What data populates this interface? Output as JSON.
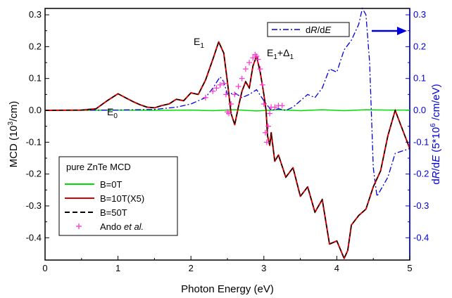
{
  "chart_data": {
    "type": "line",
    "xlabel": "Photon Energy (eV)",
    "ylabel_left": {
      "main": "MCD (10",
      "sup": "3",
      "tail": "/cm)"
    },
    "ylabel_right": {
      "pre": "d",
      "R": "R",
      "mid": "/d",
      "E": "E",
      "rest": " (5*10",
      "sup": "6",
      "tail": " /cm/eV)"
    },
    "xlim": [
      0,
      5
    ],
    "ylim": [
      -0.47,
      0.32
    ],
    "xticks": [
      "0",
      "1",
      "2",
      "3",
      "4",
      "5"
    ],
    "yticks_left": [
      "0.3",
      "0.2",
      "0.1",
      "0.0",
      "-0.1",
      "-0.2",
      "-0.3",
      "-0.4"
    ],
    "yticks_right": [
      "0.3",
      "0.2",
      "0.1",
      "0.0",
      "-0.1",
      "-0.2",
      "-0.3",
      "-0.4"
    ],
    "annotations": {
      "E0": {
        "main": "E",
        "sub": "0",
        "x": 1.0,
        "y": 0.075
      },
      "E1": {
        "main": "E",
        "sub": "1",
        "x": 2.15,
        "y": 0.245
      },
      "E1D1": {
        "main": "E",
        "sub1": "1",
        "plus": "+Δ",
        "sub2": "1",
        "x": 3.05,
        "y": 0.21
      }
    },
    "colors": {
      "B0": "#00dd00",
      "B10": "#dd0000",
      "B50": "#000000",
      "ando": "#ff33cc",
      "dRdE": "#0000dd",
      "right_axis": "#0000dd"
    },
    "legend": {
      "title": "pure ZnTe MCD",
      "items": [
        {
          "key": "B0",
          "label": "B=0T"
        },
        {
          "key": "B10",
          "label": "B=10T(X5)"
        },
        {
          "key": "B50",
          "label": "B=50T"
        },
        {
          "key": "ando",
          "label_pre": "Ando ",
          "label_em": "et al.",
          "label_post": ""
        }
      ]
    },
    "legend_right": {
      "label_pre": "d",
      "R": "R",
      "mid": "/d",
      "E": "E"
    },
    "series": {
      "B0": {
        "x": [
          0,
          0.5,
          1.0,
          1.5,
          2.0,
          2.3,
          2.6,
          2.9,
          3.2,
          3.5,
          3.8,
          4.1,
          4.4,
          4.7,
          5.0
        ],
        "y": [
          0,
          0,
          0.001,
          0,
          0.001,
          -0.001,
          0.002,
          -0.002,
          0.002,
          -0.001,
          0.002,
          -0.001,
          0.002,
          0.001,
          0.001
        ]
      },
      "B10": {
        "x": [
          0,
          0.5,
          0.7,
          0.85,
          1.0,
          1.1,
          1.2,
          1.3,
          1.4,
          1.5,
          1.6,
          1.7,
          1.8,
          1.9,
          2.0,
          2.1,
          2.2,
          2.3,
          2.38,
          2.45,
          2.5,
          2.55,
          2.6,
          2.65,
          2.7,
          2.75,
          2.8,
          2.85,
          2.9,
          2.95,
          3.0,
          3.03,
          3.05,
          3.08,
          3.1,
          3.15,
          3.2,
          3.3,
          3.4,
          3.5,
          3.6,
          3.7,
          3.8,
          3.9,
          4.0,
          4.1,
          4.15,
          4.2,
          4.3,
          4.4,
          4.5,
          4.6,
          4.7,
          4.8,
          4.9,
          5.0
        ],
        "y": [
          0,
          0.001,
          0.005,
          0.03,
          0.052,
          0.04,
          0.028,
          0.018,
          0.01,
          0.008,
          0.015,
          0.02,
          0.035,
          0.03,
          0.055,
          0.05,
          0.095,
          0.16,
          0.215,
          0.18,
          0.09,
          -0.01,
          -0.045,
          0.01,
          0.06,
          0.09,
          0.07,
          0.14,
          0.17,
          0.12,
          0.05,
          0.0,
          -0.08,
          -0.11,
          -0.07,
          -0.16,
          -0.14,
          -0.21,
          -0.18,
          -0.27,
          -0.24,
          -0.32,
          -0.28,
          -0.42,
          -0.41,
          -0.465,
          -0.44,
          -0.36,
          -0.33,
          -0.31,
          -0.24,
          -0.19,
          -0.08,
          0.0,
          -0.06,
          -0.12
        ]
      },
      "ando": {
        "x": [
          2.2,
          2.3,
          2.35,
          2.4,
          2.45,
          2.48,
          2.5,
          2.52,
          2.55,
          2.6,
          2.65,
          2.7,
          2.75,
          2.8,
          2.85,
          2.88,
          2.9,
          2.92,
          2.95,
          2.98,
          3.0,
          3.02,
          3.04,
          3.06,
          3.08,
          3.1,
          3.15,
          3.2,
          3.25
        ],
        "y": [
          0.04,
          0.06,
          0.07,
          0.08,
          0.085,
          0.05,
          -0.005,
          -0.01,
          0.02,
          0.05,
          0.075,
          0.1,
          0.13,
          0.15,
          0.165,
          0.175,
          0.17,
          0.16,
          0.13,
          0.08,
          0.02,
          -0.07,
          -0.1,
          -0.05,
          -0.01,
          0.01,
          0.01,
          0.015,
          0.015
        ]
      },
      "dRdE": {
        "x": [
          0,
          1.0,
          1.5,
          1.8,
          2.0,
          2.2,
          2.3,
          2.4,
          2.45,
          2.5,
          2.6,
          2.7,
          2.8,
          2.9,
          3.0,
          3.1,
          3.2,
          3.3,
          3.4,
          3.5,
          3.6,
          3.7,
          3.8,
          3.9,
          4.0,
          4.1,
          4.2,
          4.3,
          4.35,
          4.4,
          4.45,
          4.5,
          4.55,
          4.6,
          4.7,
          4.8,
          5.0
        ],
        "y": [
          0,
          0.001,
          0.003,
          0.01,
          0.02,
          0.04,
          0.07,
          0.105,
          0.09,
          0.05,
          0.055,
          0.04,
          0.05,
          0.065,
          0.03,
          0.0,
          0.005,
          0.0,
          0.01,
          0.03,
          0.05,
          0.04,
          0.07,
          0.13,
          0.12,
          0.19,
          0.22,
          0.27,
          0.32,
          0.3,
          0.15,
          -0.18,
          -0.27,
          -0.25,
          -0.21,
          -0.135,
          -0.12
        ]
      }
    }
  }
}
